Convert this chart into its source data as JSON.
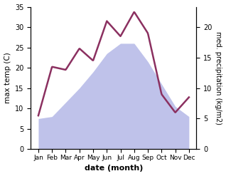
{
  "months": [
    "Jan",
    "Feb",
    "Mar",
    "Apr",
    "May",
    "Jun",
    "Jul",
    "Aug",
    "Sep",
    "Oct",
    "Nov",
    "Dec"
  ],
  "temp": [
    7.5,
    8.0,
    11.5,
    15.0,
    19.0,
    23.5,
    26.0,
    26.0,
    21.5,
    16.0,
    10.5,
    8.0
  ],
  "precip": [
    5.5,
    13.5,
    13.0,
    16.5,
    14.5,
    21.0,
    18.5,
    22.5,
    19.0,
    9.0,
    6.0,
    8.5
  ],
  "temp_color": "#aab4d8",
  "precip_color": "#8b3060",
  "temp_fill_color": "#b8bce8",
  "ylabel_left": "max temp (C)",
  "ylabel_right": "med. precipitation (kg/m2)",
  "xlabel": "date (month)",
  "ylim_left": [
    0,
    35
  ],
  "ylim_right": [
    0,
    23.33
  ],
  "title": ""
}
